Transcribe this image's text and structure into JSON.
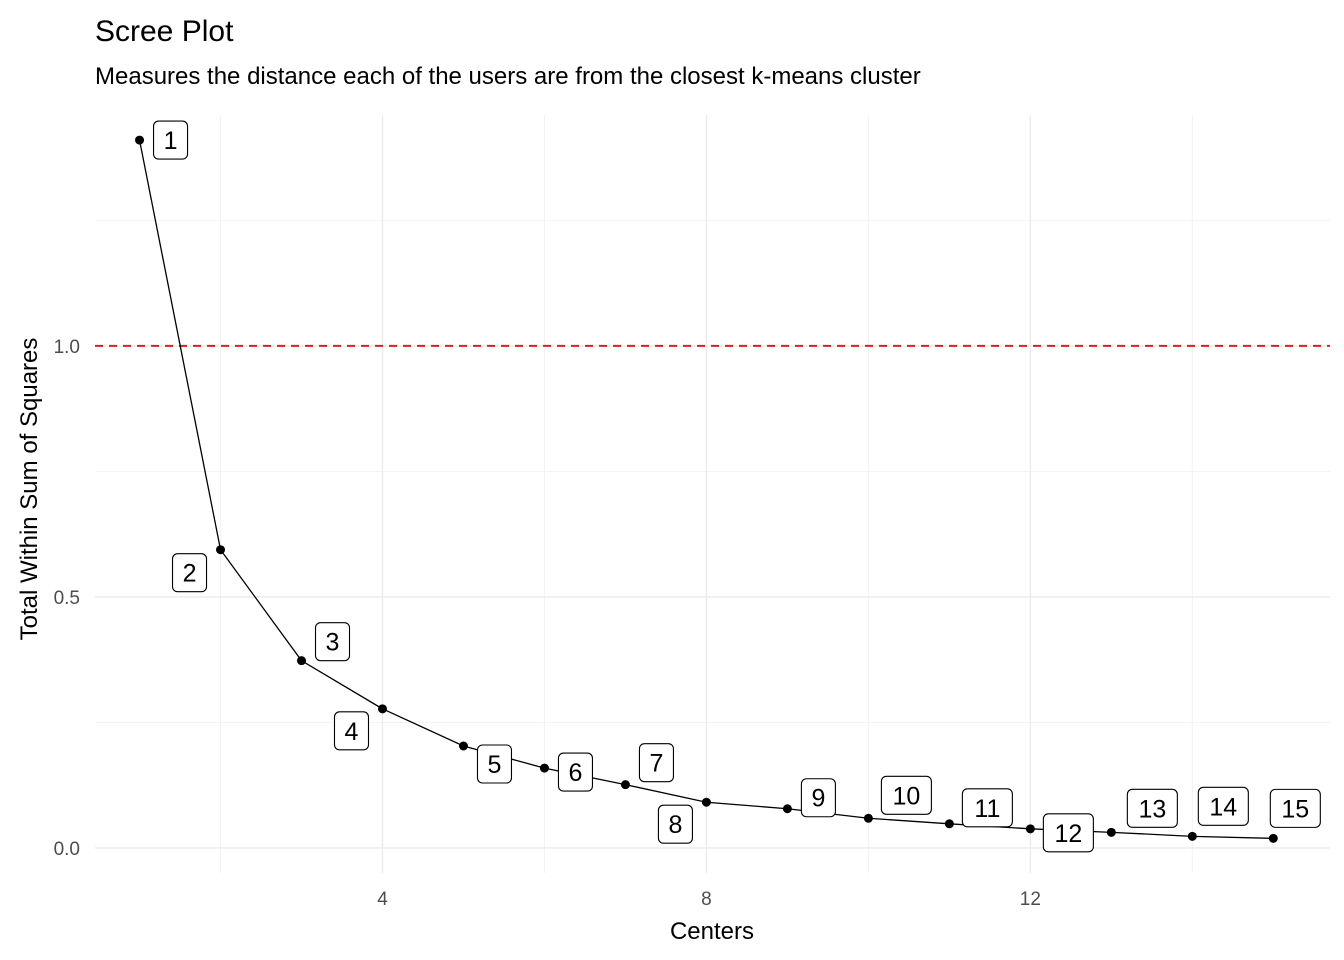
{
  "chart_data": {
    "type": "line",
    "title": "Scree Plot",
    "subtitle": "Measures the distance each of the users are from the closest k-means cluster",
    "xlabel": "Centers",
    "ylabel": "Total Within Sum of Squares",
    "xlim": [
      0.45,
      15.7
    ],
    "ylim": [
      -0.05,
      1.46
    ],
    "x_ticks": [
      4,
      8,
      12
    ],
    "x_tick_labels": [
      "4",
      "8",
      "12"
    ],
    "y_ticks": [
      0,
      0.5,
      1.0
    ],
    "y_tick_labels": [
      "0.0",
      "0.5",
      "1.0"
    ],
    "grid": true,
    "reference_line": {
      "y": 1.0,
      "color": "#e41a1c",
      "style": "dashed"
    },
    "series": [
      {
        "x": [
          1,
          2,
          3,
          4,
          5,
          6,
          7,
          8,
          9,
          10,
          11,
          12,
          13,
          14,
          15
        ],
        "values": [
          1.41,
          0.594,
          0.373,
          0.277,
          0.203,
          0.159,
          0.126,
          0.091,
          0.078,
          0.059,
          0.048,
          0.038,
          0.031,
          0.023,
          0.019
        ],
        "point_labels": [
          "1",
          "2",
          "3",
          "4",
          "5",
          "6",
          "7",
          "8",
          "9",
          "10",
          "11",
          "12",
          "13",
          "14",
          "15"
        ]
      }
    ]
  }
}
